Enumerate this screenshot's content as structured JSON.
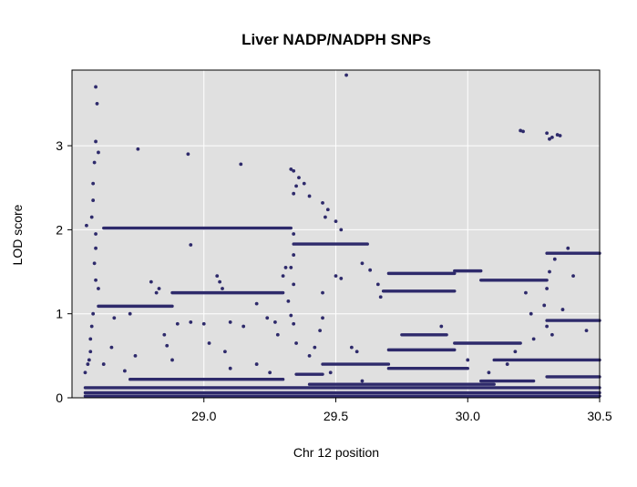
{
  "chart_data": {
    "type": "scatter",
    "title": "Liver NADP/NADPH SNPs",
    "xlabel": "Chr 12 position",
    "ylabel": "LOD score",
    "xlim": [
      28.5,
      30.5
    ],
    "ylim": [
      0,
      3.9
    ],
    "xticks": [
      29.0,
      29.5,
      30.0,
      30.5
    ],
    "xtick_labels": [
      "29.0",
      "29.5",
      "30.0",
      "30.5"
    ],
    "yticks": [
      0,
      1,
      2,
      3
    ],
    "ytick_labels": [
      "0",
      "1",
      "2",
      "3"
    ],
    "grid": true,
    "background_color": "#e0e0e0",
    "grid_color": "#ffffff",
    "point_color": "#2e2a6b",
    "bands": [
      {
        "x0": 28.62,
        "x1": 29.33,
        "y": 2.02
      },
      {
        "x0": 28.6,
        "x1": 28.88,
        "y": 1.09
      },
      {
        "x0": 28.88,
        "x1": 29.3,
        "y": 1.25
      },
      {
        "x0": 29.34,
        "x1": 29.62,
        "y": 1.83
      },
      {
        "x0": 29.7,
        "x1": 29.95,
        "y": 1.48
      },
      {
        "x0": 29.95,
        "x1": 30.05,
        "y": 1.51
      },
      {
        "x0": 30.05,
        "x1": 30.3,
        "y": 1.4
      },
      {
        "x0": 29.68,
        "x1": 29.95,
        "y": 1.27
      },
      {
        "x0": 30.3,
        "x1": 30.5,
        "y": 1.72
      },
      {
        "x0": 30.3,
        "x1": 30.5,
        "y": 0.92
      },
      {
        "x0": 29.7,
        "x1": 29.95,
        "y": 0.57
      },
      {
        "x0": 29.95,
        "x1": 30.2,
        "y": 0.65
      },
      {
        "x0": 29.75,
        "x1": 29.92,
        "y": 0.75
      },
      {
        "x0": 28.72,
        "x1": 29.3,
        "y": 0.22
      },
      {
        "x0": 29.45,
        "x1": 29.7,
        "y": 0.4
      },
      {
        "x0": 29.35,
        "x1": 29.45,
        "y": 0.28
      },
      {
        "x0": 29.7,
        "x1": 30.0,
        "y": 0.35
      },
      {
        "x0": 30.05,
        "x1": 30.25,
        "y": 0.2
      },
      {
        "x0": 30.3,
        "x1": 30.5,
        "y": 0.25
      },
      {
        "x0": 28.55,
        "x1": 30.5,
        "y": 0.12
      },
      {
        "x0": 28.55,
        "x1": 30.5,
        "y": 0.06
      },
      {
        "x0": 28.55,
        "x1": 30.5,
        "y": 0.02
      },
      {
        "x0": 29.4,
        "x1": 30.1,
        "y": 0.16
      },
      {
        "x0": 30.1,
        "x1": 30.5,
        "y": 0.45
      }
    ],
    "points": [
      {
        "x": 28.59,
        "y": 3.7
      },
      {
        "x": 28.595,
        "y": 3.5
      },
      {
        "x": 28.59,
        "y": 3.05
      },
      {
        "x": 28.6,
        "y": 2.92
      },
      {
        "x": 28.585,
        "y": 2.8
      },
      {
        "x": 28.58,
        "y": 2.55
      },
      {
        "x": 28.58,
        "y": 2.35
      },
      {
        "x": 28.575,
        "y": 2.15
      },
      {
        "x": 28.59,
        "y": 1.95
      },
      {
        "x": 28.59,
        "y": 1.78
      },
      {
        "x": 28.585,
        "y": 1.6
      },
      {
        "x": 28.59,
        "y": 1.4
      },
      {
        "x": 28.6,
        "y": 1.3
      },
      {
        "x": 28.58,
        "y": 1.0
      },
      {
        "x": 28.575,
        "y": 0.85
      },
      {
        "x": 28.57,
        "y": 0.7
      },
      {
        "x": 28.57,
        "y": 0.55
      },
      {
        "x": 28.565,
        "y": 0.45
      },
      {
        "x": 28.56,
        "y": 0.4
      },
      {
        "x": 28.55,
        "y": 0.3
      },
      {
        "x": 28.555,
        "y": 2.05
      },
      {
        "x": 28.75,
        "y": 2.96
      },
      {
        "x": 28.94,
        "y": 2.9
      },
      {
        "x": 29.14,
        "y": 2.78
      },
      {
        "x": 29.33,
        "y": 2.72
      },
      {
        "x": 29.34,
        "y": 2.7
      },
      {
        "x": 29.36,
        "y": 2.62
      },
      {
        "x": 29.38,
        "y": 2.55
      },
      {
        "x": 29.34,
        "y": 2.43
      },
      {
        "x": 29.4,
        "y": 2.4
      },
      {
        "x": 29.45,
        "y": 2.32
      },
      {
        "x": 29.47,
        "y": 2.24
      },
      {
        "x": 29.46,
        "y": 2.15
      },
      {
        "x": 29.5,
        "y": 2.1
      },
      {
        "x": 29.52,
        "y": 2.0
      },
      {
        "x": 29.54,
        "y": 3.84
      },
      {
        "x": 29.35,
        "y": 2.52
      },
      {
        "x": 29.34,
        "y": 1.95
      },
      {
        "x": 29.34,
        "y": 1.7
      },
      {
        "x": 29.33,
        "y": 1.55
      },
      {
        "x": 29.34,
        "y": 1.35
      },
      {
        "x": 29.32,
        "y": 1.15
      },
      {
        "x": 29.33,
        "y": 0.98
      },
      {
        "x": 29.34,
        "y": 0.88
      },
      {
        "x": 29.35,
        "y": 0.65
      },
      {
        "x": 29.45,
        "y": 1.25
      },
      {
        "x": 29.5,
        "y": 1.45
      },
      {
        "x": 29.52,
        "y": 1.42
      },
      {
        "x": 29.6,
        "y": 1.6
      },
      {
        "x": 29.63,
        "y": 1.52
      },
      {
        "x": 29.66,
        "y": 1.35
      },
      {
        "x": 29.67,
        "y": 1.2
      },
      {
        "x": 29.45,
        "y": 0.95
      },
      {
        "x": 29.42,
        "y": 0.6
      },
      {
        "x": 29.4,
        "y": 0.5
      },
      {
        "x": 29.56,
        "y": 0.6
      },
      {
        "x": 29.58,
        "y": 0.55
      },
      {
        "x": 30.2,
        "y": 3.18
      },
      {
        "x": 30.21,
        "y": 3.17
      },
      {
        "x": 30.3,
        "y": 3.15
      },
      {
        "x": 30.31,
        "y": 3.08
      },
      {
        "x": 30.32,
        "y": 3.1
      },
      {
        "x": 30.34,
        "y": 3.13
      },
      {
        "x": 30.35,
        "y": 3.12
      },
      {
        "x": 30.33,
        "y": 1.65
      },
      {
        "x": 30.31,
        "y": 1.5
      },
      {
        "x": 30.3,
        "y": 1.3
      },
      {
        "x": 30.29,
        "y": 1.1
      },
      {
        "x": 30.3,
        "y": 0.85
      },
      {
        "x": 30.32,
        "y": 0.75
      },
      {
        "x": 30.25,
        "y": 0.7
      },
      {
        "x": 30.18,
        "y": 0.55
      },
      {
        "x": 30.22,
        "y": 1.25
      },
      {
        "x": 30.24,
        "y": 1.0
      },
      {
        "x": 30.38,
        "y": 1.78
      },
      {
        "x": 30.4,
        "y": 1.45
      },
      {
        "x": 30.36,
        "y": 1.05
      },
      {
        "x": 30.45,
        "y": 0.8
      },
      {
        "x": 28.8,
        "y": 1.38
      },
      {
        "x": 28.83,
        "y": 1.3
      },
      {
        "x": 28.82,
        "y": 1.25
      },
      {
        "x": 28.72,
        "y": 1.0
      },
      {
        "x": 28.66,
        "y": 0.95
      },
      {
        "x": 28.74,
        "y": 0.5
      },
      {
        "x": 28.85,
        "y": 0.75
      },
      {
        "x": 28.86,
        "y": 0.62
      },
      {
        "x": 28.88,
        "y": 0.45
      },
      {
        "x": 28.9,
        "y": 0.88
      },
      {
        "x": 28.95,
        "y": 0.9
      },
      {
        "x": 29.0,
        "y": 0.88
      },
      {
        "x": 29.02,
        "y": 0.65
      },
      {
        "x": 29.05,
        "y": 1.45
      },
      {
        "x": 29.06,
        "y": 1.38
      },
      {
        "x": 29.07,
        "y": 1.3
      },
      {
        "x": 29.1,
        "y": 0.9
      },
      {
        "x": 29.15,
        "y": 0.85
      },
      {
        "x": 29.2,
        "y": 1.12
      },
      {
        "x": 29.24,
        "y": 0.95
      },
      {
        "x": 29.27,
        "y": 0.9
      },
      {
        "x": 29.28,
        "y": 0.75
      },
      {
        "x": 29.31,
        "y": 1.55
      },
      {
        "x": 29.3,
        "y": 1.45
      },
      {
        "x": 29.2,
        "y": 0.4
      },
      {
        "x": 29.25,
        "y": 0.3
      },
      {
        "x": 29.1,
        "y": 0.35
      },
      {
        "x": 28.65,
        "y": 0.6
      },
      {
        "x": 28.62,
        "y": 0.4
      },
      {
        "x": 28.7,
        "y": 0.32
      },
      {
        "x": 28.95,
        "y": 1.82
      },
      {
        "x": 29.08,
        "y": 0.55
      },
      {
        "x": 29.48,
        "y": 0.3
      },
      {
        "x": 29.44,
        "y": 0.8
      },
      {
        "x": 29.6,
        "y": 0.2
      },
      {
        "x": 29.9,
        "y": 0.85
      },
      {
        "x": 30.0,
        "y": 0.45
      },
      {
        "x": 30.08,
        "y": 0.3
      },
      {
        "x": 30.15,
        "y": 0.4
      }
    ]
  }
}
